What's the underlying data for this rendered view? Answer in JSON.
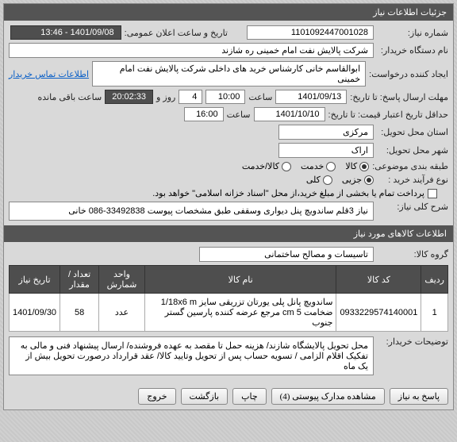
{
  "header": {
    "title": "جزئیات اطلاعات نیاز"
  },
  "fields": {
    "needNumberLabel": "شماره نیاز:",
    "needNumber": "1101092447001028",
    "announceLabel": "تاریخ و ساعت اعلان عمومی:",
    "announceValue": "1401/09/08 - 13:46",
    "buyerOrgLabel": "نام دستگاه خریدار:",
    "buyerOrg": "شرکت پالایش نفت امام خمینی  ره  شازند",
    "requesterLabel": "ایجاد کننده درخواست:",
    "requester": "ابوالقاسم  خانی  کارشناس خرید های داخلی  شرکت پالایش نفت امام خمینی",
    "contactLink": "اطلاعات تماس خریدار",
    "deadlineLabel": "مهلت ارسال پاسخ: تا تاریخ:",
    "deadlineDate": "1401/09/13",
    "timeLabel": "ساعت",
    "deadlineTime": "10:00",
    "dayAndLabel": "روز و",
    "dayValue": "4",
    "countdownValue": "20:02:33",
    "countdownSuffix": "ساعت باقی مانده",
    "validityLabel": "حداقل تاریخ اعتبار قیمت: تا تاریخ:",
    "validityDate": "1401/10/10",
    "validityTime": "16:00",
    "reqProvinceLabel": "استان محل تحویل:",
    "reqProvince": "مرکزی",
    "reqCityLabel": "شهر محل تحویل:",
    "reqCity": "اراک",
    "categoryLabel": "طبقه بندی موضوعی:",
    "goodsLabel": "کالا",
    "serviceLabel": "خدمت",
    "bothLabel": "کالا/خدمت",
    "purchaseTypeLabel": "نوع فرآیند خرید :",
    "partialLabel": "جزیی",
    "fullLabel": "کلی",
    "paymentNote": "پرداخت تمام یا بخشی از مبلغ خرید،از محل \"اسناد خزانه اسلامی\" خواهد بود.",
    "needSummaryLabel": "شرح کلی نیاز:",
    "needSummary": "نیاز 3قلم ساندویچ پنل دیواری وسقفی طبق مشخصات پیوست 33492838-086 خانی",
    "itemsSectionTitle": "اطلاعات كالاهای مورد نیاز",
    "itemGroupLabel": "گروه کالا:",
    "itemGroup": "تاسیسات و مصالح ساختمانی",
    "buyerNotesLabel": "توضیحات خریدار:",
    "buyerNotes": "محل تحویل پالایشگاه شازند/ هزینه حمل تا مقصد به عهده فروشنده/ ارسال پیشنهاد فنی و مالی به تفکیک اقلام الزامی / تسویه حساب پس از تحویل وتایید کالا/ عقد قرارداد درصورت تحویل بیش از یک ماه"
  },
  "table": {
    "columns": [
      "ردیف",
      "کد کالا",
      "نام کالا",
      "واحد شمارش",
      "تعداد / مقدار",
      "تاریخ نیاز"
    ],
    "rows": [
      [
        "1",
        "0933229574140001",
        "ساندویچ پانل پلی یورتان تزریقی سایز 1/18x6 m ضخامت 5 cm مرجع عرضه کننده پارسین گستر جنوب",
        "عدد",
        "58",
        "1401/09/30"
      ]
    ]
  },
  "buttons": {
    "reply": "پاسخ به نیاز",
    "attachments": "مشاهده مدارک پیوستی (4)",
    "print": "چاپ",
    "back": "بازگشت",
    "exit": "خروج"
  }
}
